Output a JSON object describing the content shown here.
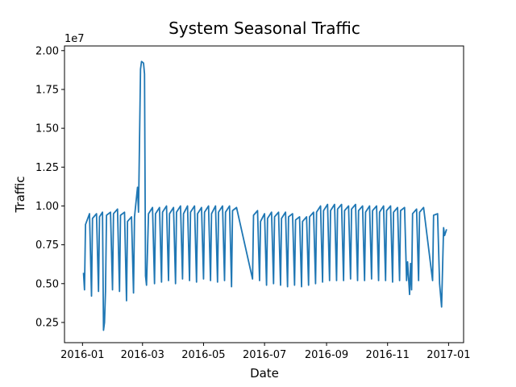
{
  "chart_data": {
    "type": "line",
    "title": "System Seasonal Traffic",
    "x_label": "Date",
    "y_label": "Traffic",
    "y_offset_label": "1e7",
    "xlim": [
      -18,
      381
    ],
    "ylim": [
      0.12,
      2.03
    ],
    "xticks": [
      {
        "value": 0,
        "label": "2016-01"
      },
      {
        "value": 60,
        "label": "2016-03"
      },
      {
        "value": 121,
        "label": "2016-05"
      },
      {
        "value": 182,
        "label": "2016-07"
      },
      {
        "value": 244,
        "label": "2016-09"
      },
      {
        "value": 305,
        "label": "2016-11"
      },
      {
        "value": 366,
        "label": "2017-01"
      }
    ],
    "yticks": [
      {
        "value": 0.25,
        "label": "0.25"
      },
      {
        "value": 0.5,
        "label": "0.50"
      },
      {
        "value": 0.75,
        "label": "0.75"
      },
      {
        "value": 1,
        "label": "1.00"
      },
      {
        "value": 1.25,
        "label": "1.25"
      },
      {
        "value": 1.5,
        "label": "1.50"
      },
      {
        "value": 1.75,
        "label": "1.75"
      },
      {
        "value": 2,
        "label": "2.00"
      }
    ],
    "grid": false,
    "series": [
      {
        "color": "#1f77b4",
        "x": [
          1,
          2,
          3,
          7,
          9,
          10,
          14,
          16,
          17,
          20,
          21,
          22,
          23,
          24,
          28,
          30,
          31,
          35,
          37,
          38,
          42,
          44,
          45,
          49,
          51,
          52,
          55,
          56,
          58,
          59,
          61,
          62,
          63,
          64,
          66,
          70,
          72,
          73,
          77,
          79,
          80,
          84,
          86,
          87,
          91,
          93,
          94,
          98,
          100,
          101,
          105,
          107,
          108,
          112,
          114,
          115,
          119,
          121,
          122,
          126,
          128,
          129,
          133,
          135,
          136,
          140,
          142,
          143,
          147,
          149,
          150,
          154,
          170,
          171,
          175,
          177,
          178,
          182,
          184,
          185,
          189,
          191,
          192,
          196,
          198,
          199,
          203,
          205,
          206,
          210,
          212,
          213,
          217,
          219,
          220,
          224,
          226,
          227,
          231,
          233,
          234,
          238,
          240,
          241,
          245,
          247,
          248,
          252,
          254,
          255,
          259,
          261,
          262,
          266,
          268,
          269,
          273,
          275,
          276,
          280,
          282,
          283,
          287,
          289,
          290,
          294,
          296,
          297,
          301,
          303,
          304,
          308,
          310,
          311,
          315,
          317,
          318,
          322,
          324,
          325,
          327,
          328,
          329,
          330,
          334,
          336,
          337,
          341,
          350,
          351,
          355,
          357,
          359,
          361,
          362,
          364
        ],
        "values": [
          0.57,
          0.46,
          0.88,
          0.95,
          0.42,
          0.92,
          0.95,
          0.45,
          0.93,
          0.96,
          0.2,
          0.25,
          0.45,
          0.94,
          0.96,
          0.46,
          0.95,
          0.98,
          0.45,
          0.94,
          0.96,
          0.39,
          0.9,
          0.93,
          0.44,
          0.93,
          1.12,
          0.96,
          1.88,
          1.93,
          1.92,
          1.85,
          0.55,
          0.49,
          0.95,
          0.99,
          0.5,
          0.95,
          0.99,
          0.51,
          0.96,
          1.0,
          0.52,
          0.95,
          0.99,
          0.5,
          0.96,
          1.0,
          0.53,
          0.95,
          1.0,
          0.52,
          0.96,
          1.0,
          0.51,
          0.95,
          0.99,
          0.53,
          0.96,
          1.0,
          0.52,
          0.95,
          1.0,
          0.51,
          0.96,
          1.0,
          0.52,
          0.96,
          1.0,
          0.48,
          0.97,
          0.99,
          0.53,
          0.94,
          0.97,
          0.52,
          0.9,
          0.95,
          0.49,
          0.92,
          0.96,
          0.5,
          0.93,
          0.96,
          0.49,
          0.92,
          0.96,
          0.48,
          0.93,
          0.95,
          0.49,
          0.91,
          0.93,
          0.48,
          0.9,
          0.93,
          0.49,
          0.93,
          0.96,
          0.5,
          0.96,
          1.0,
          0.51,
          0.97,
          1.01,
          0.52,
          0.97,
          1.01,
          0.52,
          0.98,
          1.01,
          0.52,
          0.97,
          1.0,
          0.53,
          0.98,
          1.01,
          0.52,
          0.97,
          1.0,
          0.52,
          0.96,
          1.0,
          0.53,
          0.97,
          1.0,
          0.52,
          0.96,
          1.0,
          0.52,
          0.97,
          1.0,
          0.51,
          0.96,
          0.99,
          0.52,
          0.97,
          0.99,
          0.52,
          0.64,
          0.43,
          0.63,
          0.46,
          0.95,
          0.98,
          0.52,
          0.96,
          0.99,
          0.52,
          0.94,
          0.95,
          0.5,
          0.35,
          0.86,
          0.81,
          0.85
        ]
      }
    ]
  }
}
